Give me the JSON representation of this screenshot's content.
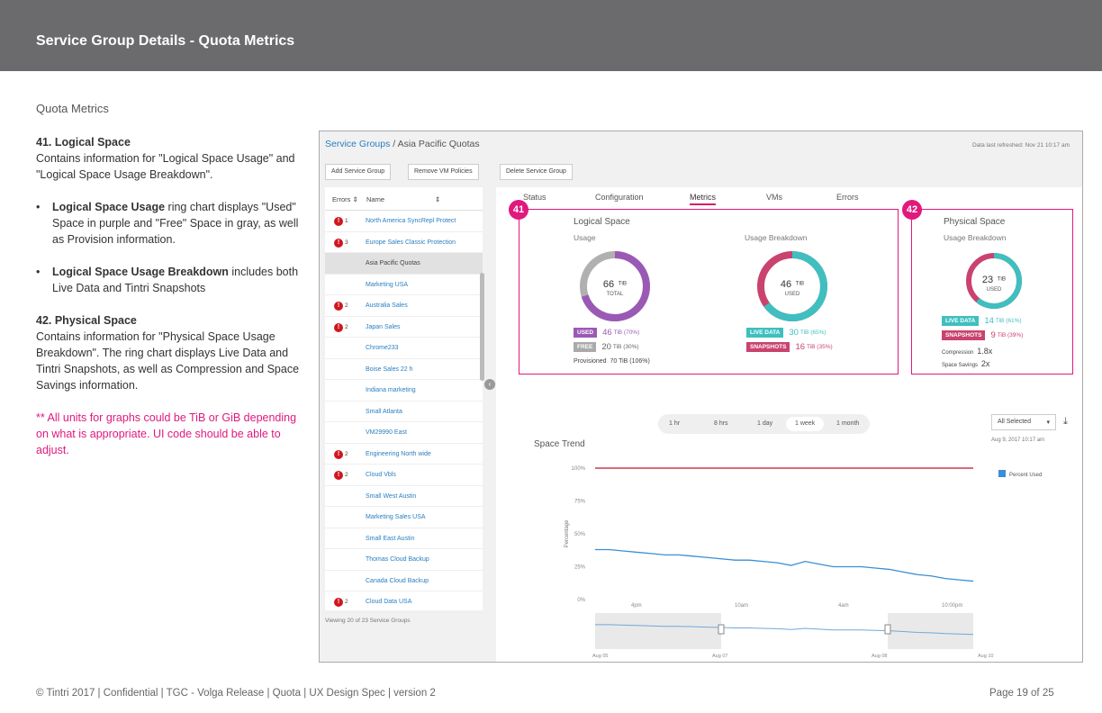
{
  "header": {
    "title": "Service Group Details - Quota Metrics"
  },
  "section_title": "Quota Metrics",
  "description": {
    "s41_heading": "41. Logical Space",
    "s41_text": "Contains information for \"Logical Space Usage\" and \"Logical Space Usage Breakdown\".",
    "bullet1_bold": "Logical Space Usage",
    "bullet1_text": " ring chart displays \"Used\" Space in purple and \"Free\" Space in gray, as well as Provision information.",
    "bullet2_bold": "Logical Space Usage Breakdown",
    "bullet2_text": " includes both Live Data and Tintri Snapshots",
    "s42_heading": "42. Physical Space",
    "s42_text": "Contains information for \"Physical Space Usage Breakdown\". The ring chart displays Live Data and Tintri Snapshots, as well as Compression and Space Savings information.",
    "note": "** All units for graphs could be TiB or GiB depending on what is appropriate. UI code should be able to adjust."
  },
  "footer": {
    "left": "© Tintri 2017  | Confidential |  TGC - Volga Release  |  Quota  |  UX Design Spec  |  version 2",
    "right": "Page 19 of 25"
  },
  "app": {
    "breadcrumb_link": "Service Groups",
    "breadcrumb_sep": " / ",
    "breadcrumb_current": "Asia Pacific Quotas",
    "refresh": "Data last refreshed: Nov 21 10:17 am",
    "buttons": {
      "add": "Add Service Group",
      "remove": "Remove VM Policies",
      "delete": "Delete Service Group"
    },
    "list_headers": {
      "errors": "Errors ⇕",
      "name": "Name",
      "sort": "⇕"
    },
    "list": [
      {
        "err": true,
        "count": "1",
        "name": "North America SyncRepl Protect",
        "selected": false
      },
      {
        "err": true,
        "count": "3",
        "name": "Europe Sales Classic Protection",
        "selected": false
      },
      {
        "err": false,
        "count": "",
        "name": "Asia Pacific Quotas",
        "selected": true
      },
      {
        "err": false,
        "count": "",
        "name": "Marketing USA",
        "selected": false
      },
      {
        "err": true,
        "count": "2",
        "name": "Australia Sales",
        "selected": false
      },
      {
        "err": true,
        "count": "2",
        "name": "Japan Sales",
        "selected": false
      },
      {
        "err": false,
        "count": "",
        "name": "Chrome233",
        "selected": false
      },
      {
        "err": false,
        "count": "",
        "name": "Boise Sales 22 h",
        "selected": false
      },
      {
        "err": false,
        "count": "",
        "name": "Indiana marketing",
        "selected": false
      },
      {
        "err": false,
        "count": "",
        "name": "Small Atlanta",
        "selected": false
      },
      {
        "err": false,
        "count": "",
        "name": "VM29990 East",
        "selected": false
      },
      {
        "err": true,
        "count": "2",
        "name": "Engineering North wide",
        "selected": false
      },
      {
        "err": true,
        "count": "2",
        "name": "Cloud Vbls",
        "selected": false
      },
      {
        "err": false,
        "count": "",
        "name": "Small West Austin",
        "selected": false
      },
      {
        "err": false,
        "count": "",
        "name": "Marketing Sales USA",
        "selected": false
      },
      {
        "err": false,
        "count": "",
        "name": "Small East Austin",
        "selected": false
      },
      {
        "err": false,
        "count": "",
        "name": "Thomas Cloud Backup",
        "selected": false
      },
      {
        "err": false,
        "count": "",
        "name": "Canada Cloud Backup",
        "selected": false
      },
      {
        "err": true,
        "count": "2",
        "name": "Cloud Data USA",
        "selected": false
      }
    ],
    "viewing": "Viewing 20 of 23   Service Groups",
    "tabs": [
      "Status",
      "Configuration",
      "Metrics",
      "VMs",
      "Errors"
    ],
    "active_tab": "Metrics",
    "logical": {
      "badge": "41",
      "title": "Logical Space",
      "usage_label": "Usage",
      "usage_value": "66",
      "usage_unit": "TiB",
      "usage_caption": "TOTAL",
      "used_label": "USED",
      "used_value": "46",
      "used_unit": "TiB (70%)",
      "used_pct": 70,
      "free_label": "FREE",
      "free_value": "20",
      "free_unit": "TiB (30%)",
      "provisioned_label": "Provisioned",
      "provisioned_value": "70 TiB (106%)",
      "breakdown_label": "Usage Breakdown",
      "bd_value": "46",
      "bd_unit": "TiB",
      "bd_caption": "USED",
      "live_label": "LIVE DATA",
      "live_value": "30",
      "live_unit": "TiB (65%)",
      "live_pct": 65,
      "snap_label": "SNAPSHOTS",
      "snap_value": "16",
      "snap_unit": "TiB (35%)"
    },
    "physical": {
      "badge": "42",
      "title": "Physical Space",
      "breakdown_label": "Usage Breakdown",
      "value": "23",
      "unit": "TiB",
      "caption": "USED",
      "live_label": "LIVE DATA",
      "live_value": "14",
      "live_unit": "TiB (61%)",
      "live_pct": 61,
      "snap_label": "SNAPSHOTS",
      "snap_value": "9",
      "snap_unit": "TiB (39%)",
      "compression_label": "Compression",
      "compression_value": "1.8x",
      "savings_label": "Space Savings",
      "savings_value": "2x"
    },
    "ranges": [
      "1 hr",
      "8 hrs",
      "1 day",
      "1 week",
      "1 month"
    ],
    "active_range": "1 week",
    "filter": "All Selected",
    "filter_caret": "▾",
    "download_icon": "⤓",
    "trend_title": "Space Trend",
    "trend_date": "Aug 9, 2017  10:17 am",
    "colors": {
      "magenta": "#e0197d",
      "purple": "#9b59b6",
      "gray": "#b0b0b0",
      "teal": "#3fbfbf",
      "pink": "#c9436e",
      "line": "#3a8fd6",
      "redline": "#c0142a"
    }
  },
  "chart_data": {
    "type": "line",
    "title": "Space Trend",
    "xlabel": "",
    "ylabel": "Percentage",
    "ylim": [
      0,
      100
    ],
    "yticks": [
      "100%",
      "75%",
      "50%",
      "25%",
      "0%"
    ],
    "x_ticks": [
      "4pm",
      "10am",
      "4am",
      "10:00pm"
    ],
    "nav_ticks": [
      "Aug 05",
      "Aug 07",
      "Aug 08",
      "Aug 10"
    ],
    "threshold": {
      "label": "100%",
      "value": 100
    },
    "legend": [
      "Percent Used"
    ],
    "series": [
      {
        "name": "Percent Used",
        "values": [
          38,
          38,
          37,
          36,
          35,
          34,
          34,
          33,
          32,
          31,
          30,
          30,
          29,
          28,
          26,
          29,
          27,
          25,
          25,
          25,
          24,
          23,
          21,
          19,
          18,
          16,
          15,
          14
        ]
      }
    ]
  }
}
